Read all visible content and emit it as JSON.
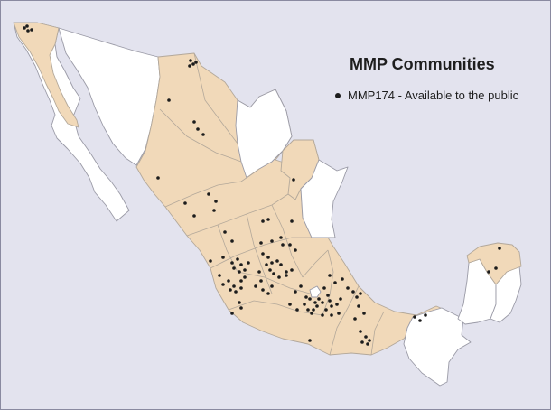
{
  "title": "MMP Communities",
  "legend": {
    "label": "MMP174 - Available to the public",
    "marker": "black-dot"
  },
  "colors": {
    "background": "#e3e3ee",
    "included_states": "#f1d9b9",
    "other_states": "#ffffff",
    "community_marker": "#1c1c1c"
  }
}
